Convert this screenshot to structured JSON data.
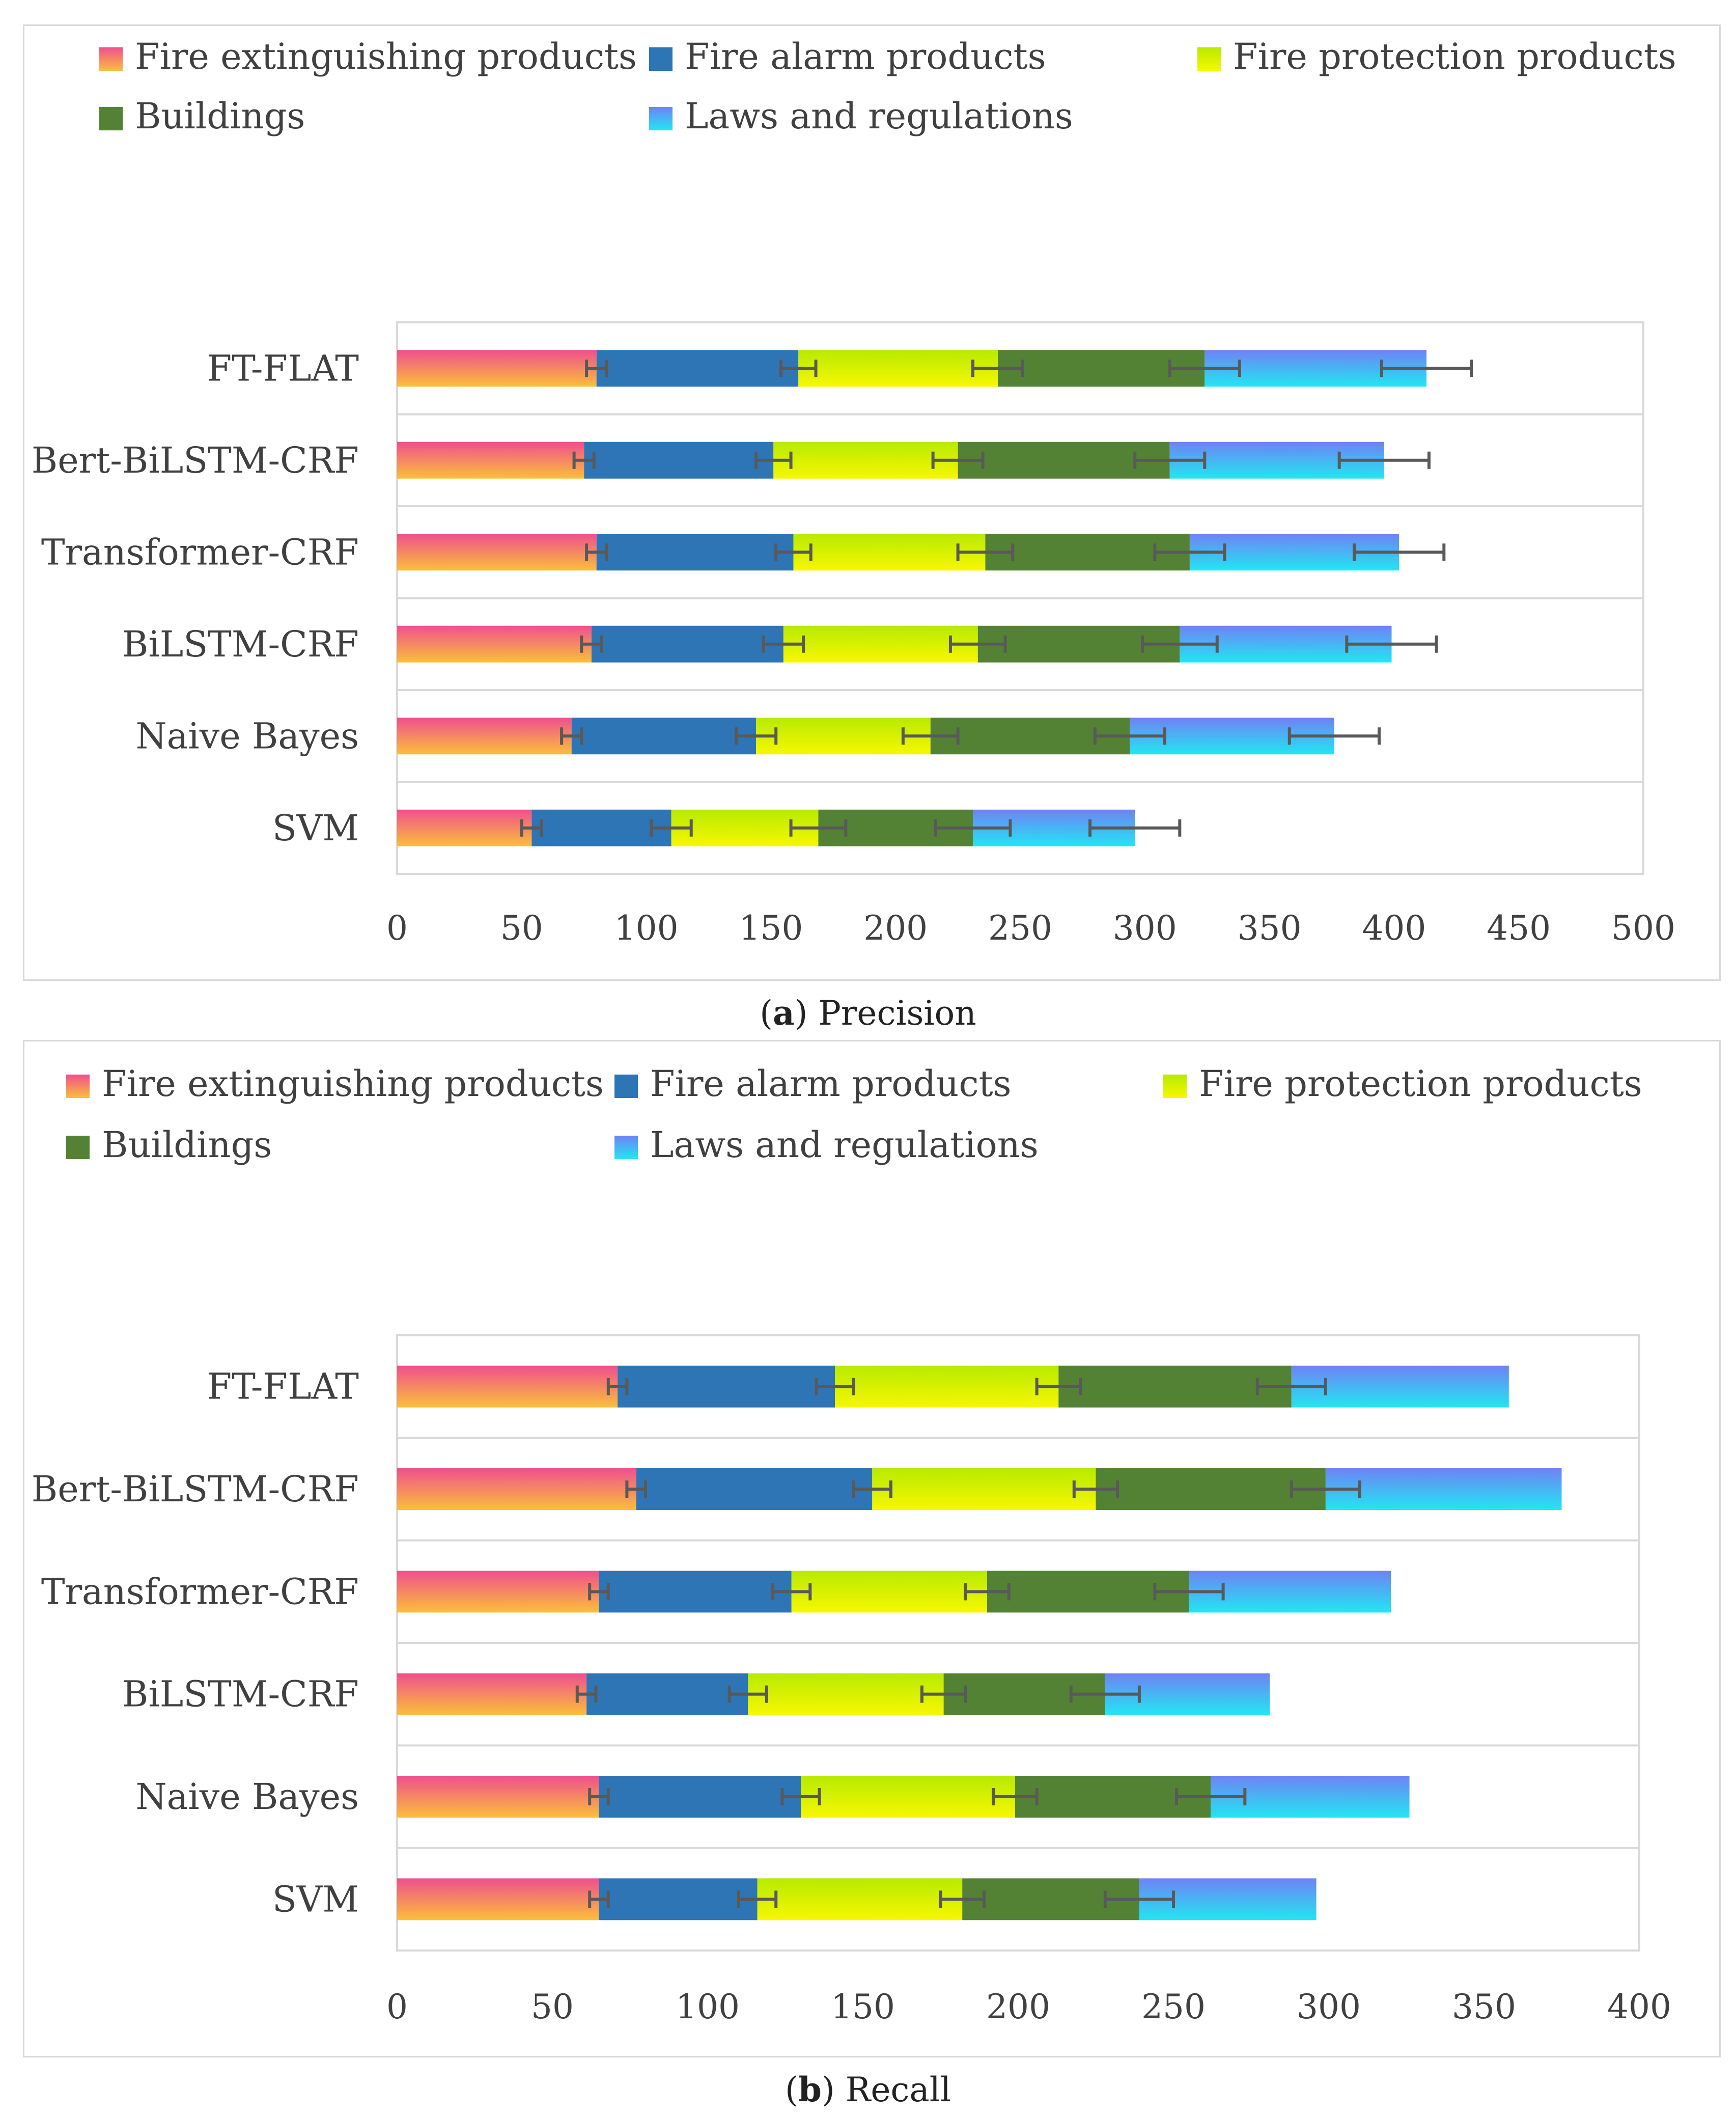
{
  "colors": {
    "extinguishing_top": "#ef4f8f",
    "extinguishing_bottom": "#fbbf3a",
    "alarm": "#2e75b6",
    "protection_top": "#b7ea00",
    "protection_bottom": "#f7f700",
    "buildings": "#548235",
    "laws_top": "#6f82f5",
    "laws_bottom": "#22e6f2",
    "error_bar": "#595959",
    "grid": "#d9d9d9",
    "text": "#404040"
  },
  "captions": {
    "a_letter": "a",
    "a_label": "Precision",
    "b_letter": "b",
    "b_label": "Recall"
  },
  "chart_data": [
    {
      "type": "bar",
      "orientation": "horizontal",
      "stacked": true,
      "title": "(a) Precision",
      "categories": [
        "FT-FLAT",
        "Bert-BiLSTM-CRF",
        "Transformer-CRF",
        "BiLSTM-CRF",
        "Naive Bayes",
        "SVM"
      ],
      "xlim": [
        0,
        500
      ],
      "xticks": [
        0,
        50,
        100,
        150,
        200,
        250,
        300,
        350,
        400,
        450,
        500
      ],
      "legend_position": "top",
      "series": [
        {
          "name": "Fire extinguishing products",
          "key": "extinguishing",
          "values": [
            80,
            75,
            80,
            78,
            70,
            54
          ],
          "errors": [
            4,
            4,
            4,
            4,
            4,
            4
          ]
        },
        {
          "name": "Fire alarm products",
          "key": "alarm",
          "values": [
            81,
            76,
            79,
            77,
            74,
            56
          ],
          "errors": [
            7,
            7,
            7,
            8,
            8,
            8
          ]
        },
        {
          "name": "Fire protection products",
          "key": "protection",
          "values": [
            80,
            74,
            77,
            78,
            70,
            59
          ],
          "errors": [
            10,
            10,
            11,
            11,
            11,
            11
          ]
        },
        {
          "name": "Buildings",
          "key": "buildings",
          "values": [
            83,
            85,
            82,
            81,
            80,
            62
          ],
          "errors": [
            14,
            14,
            14,
            15,
            14,
            15
          ]
        },
        {
          "name": "Laws and regulations",
          "key": "laws",
          "values": [
            89,
            86,
            84,
            85,
            82,
            65
          ],
          "errors": [
            18,
            18,
            18,
            18,
            18,
            18
          ]
        }
      ]
    },
    {
      "type": "bar",
      "orientation": "horizontal",
      "stacked": true,
      "title": "(b) Recall",
      "categories": [
        "FT-FLAT",
        "Bert-BiLSTM-CRF",
        "Transformer-CRF",
        "BiLSTM-CRF",
        "Naive Bayes",
        "SVM"
      ],
      "xlim": [
        0,
        400
      ],
      "xticks": [
        0,
        50,
        100,
        150,
        200,
        250,
        300,
        350,
        400
      ],
      "legend_position": "top",
      "series": [
        {
          "name": "Fire extinguishing products",
          "key": "extinguishing",
          "values": [
            71,
            77,
            65,
            61,
            65,
            65
          ],
          "errors": [
            3,
            3,
            3,
            3,
            3,
            3
          ]
        },
        {
          "name": "Fire alarm products",
          "key": "alarm",
          "values": [
            70,
            76,
            62,
            52,
            65,
            51
          ],
          "errors": [
            6,
            6,
            6,
            6,
            6,
            6
          ]
        },
        {
          "name": "Fire protection products",
          "key": "protection",
          "values": [
            72,
            72,
            63,
            63,
            69,
            66
          ],
          "errors": [
            7,
            7,
            7,
            7,
            7,
            7
          ]
        },
        {
          "name": "Buildings",
          "key": "buildings",
          "values": [
            75,
            74,
            65,
            52,
            63,
            57
          ],
          "errors": [
            11,
            11,
            11,
            11,
            11,
            11
          ]
        },
        {
          "name": "Laws and regulations",
          "key": "laws",
          "values": [
            70,
            76,
            65,
            53,
            64,
            57
          ],
          "errors": [
            0,
            0,
            0,
            0,
            0,
            0
          ]
        }
      ]
    }
  ]
}
